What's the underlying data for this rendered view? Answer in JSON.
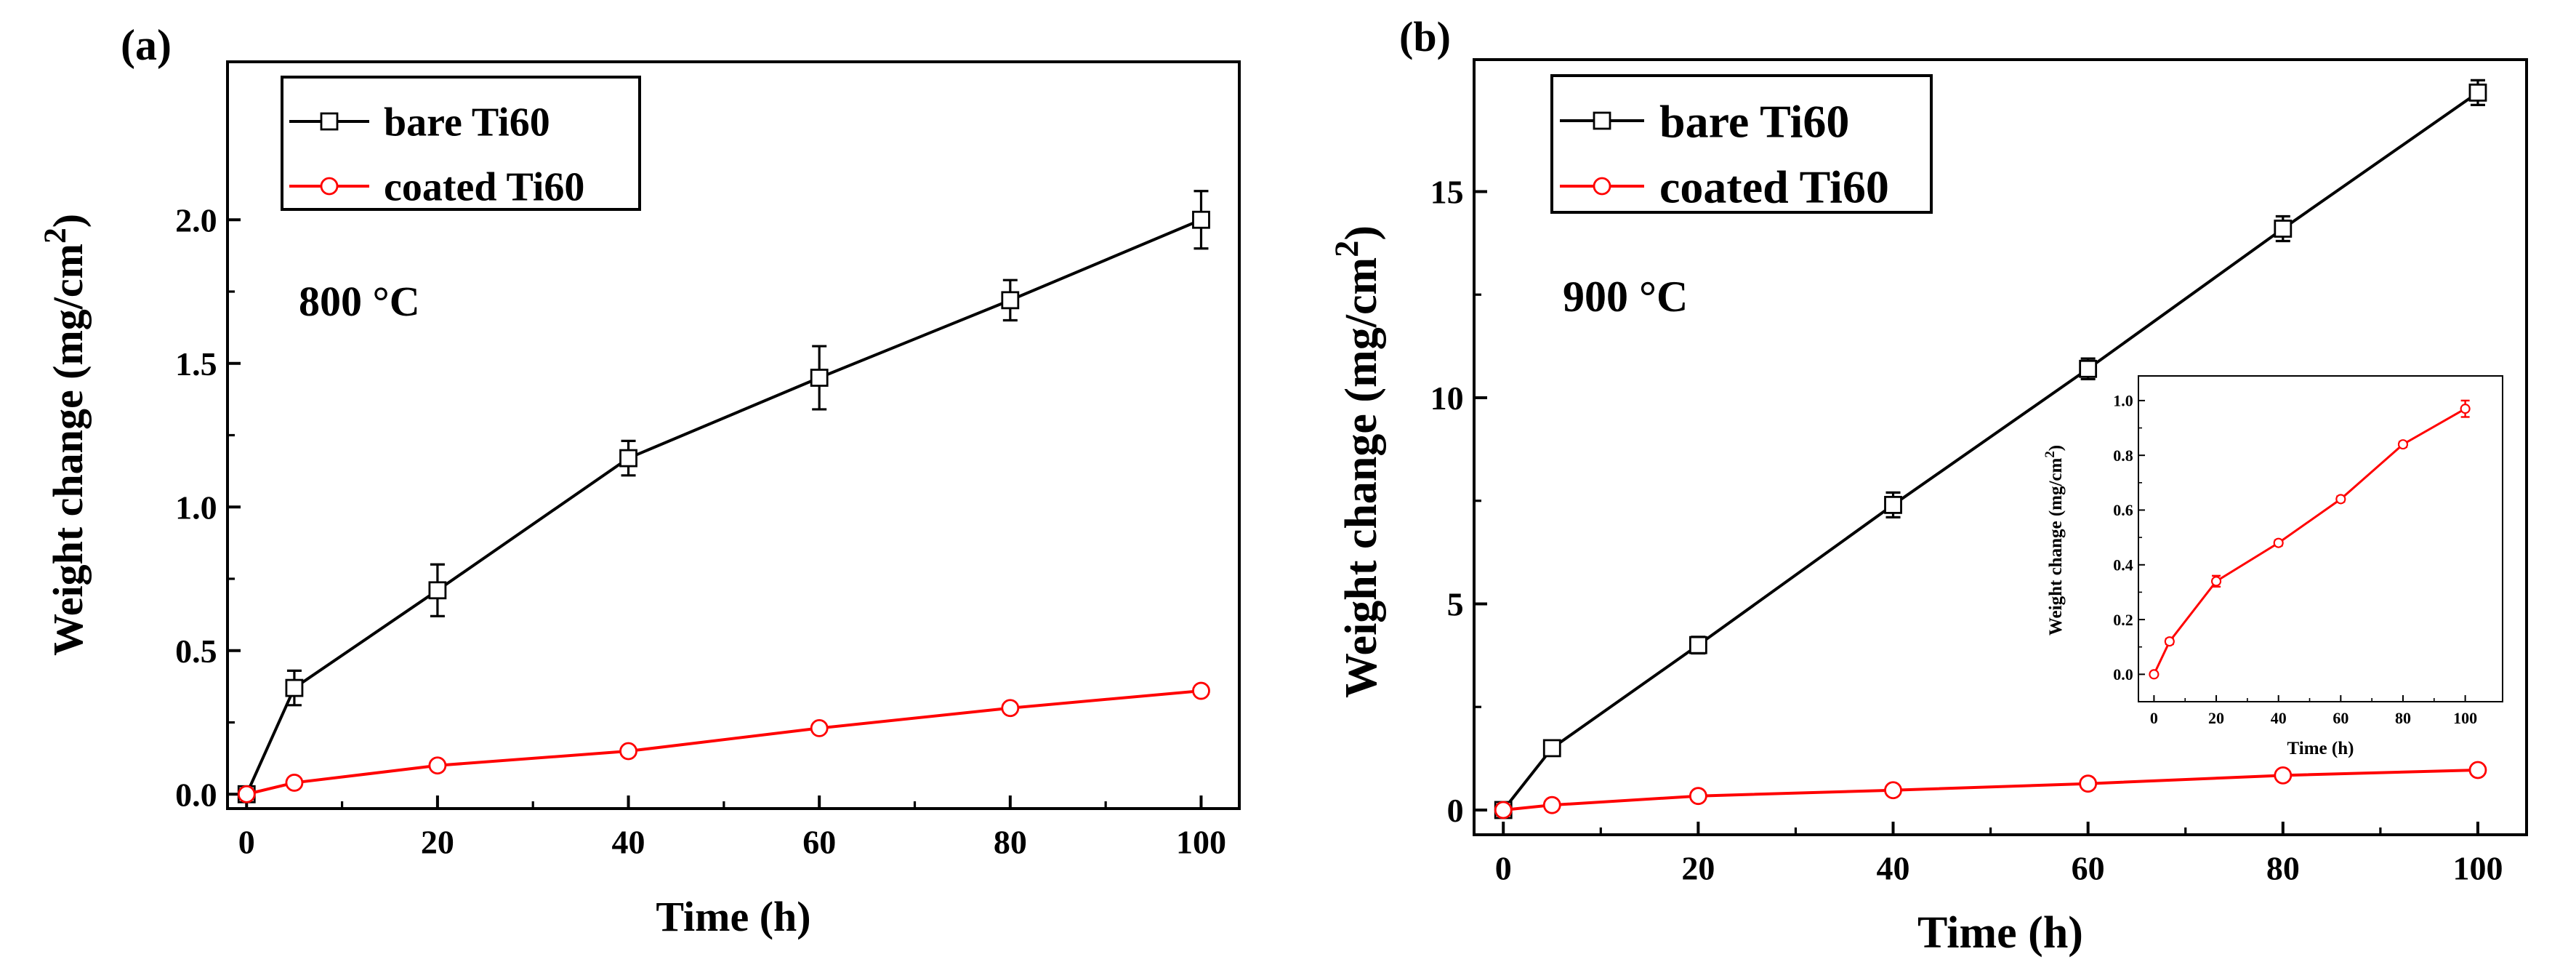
{
  "chart_data": [
    {
      "panel": "(a)",
      "type": "line",
      "xlabel": "Time (h)",
      "ylabel": "Weight change (mg/cm",
      "ylabel_sup": "2",
      "ylabel_close": ")",
      "xlim": [
        -2,
        104
      ],
      "ylim": [
        -0.05,
        2.55
      ],
      "xticks": [
        0,
        20,
        40,
        60,
        80,
        100
      ],
      "yticks": [
        0.0,
        0.5,
        1.0,
        1.5,
        2.0
      ],
      "ytick_labels": [
        "0.0",
        "0.5",
        "1.0",
        "1.5",
        "2.0"
      ],
      "annotation": "800 °C",
      "legend_position": "top-left",
      "series": [
        {
          "name": "bare Ti60",
          "color": "#000000",
          "marker": "square",
          "x": [
            0,
            5,
            20,
            40,
            60,
            80,
            100
          ],
          "values": [
            0.0,
            0.37,
            0.71,
            1.17,
            1.45,
            1.72,
            2.0
          ],
          "errors": [
            0.0,
            0.06,
            0.09,
            0.06,
            0.11,
            0.07,
            0.1
          ]
        },
        {
          "name": "coated Ti60",
          "color": "#ff0000",
          "marker": "circle",
          "x": [
            0,
            5,
            20,
            40,
            60,
            80,
            100
          ],
          "values": [
            0.0,
            0.04,
            0.1,
            0.15,
            0.23,
            0.3,
            0.36
          ],
          "errors": [
            0.0,
            0.005,
            0.005,
            0.005,
            0.005,
            0.005,
            0.005
          ]
        }
      ]
    },
    {
      "panel": "(b)",
      "type": "line",
      "xlabel": "Time (h)",
      "ylabel": "Weight change (mg/cm",
      "ylabel_sup": "2",
      "ylabel_close": ")",
      "xlim": [
        -3,
        105
      ],
      "ylim": [
        -0.6,
        18.2
      ],
      "xticks": [
        0,
        20,
        40,
        60,
        80,
        100
      ],
      "yticks": [
        0,
        5,
        10,
        15
      ],
      "ytick_labels": [
        "0",
        "5",
        "10",
        "15"
      ],
      "annotation": "900 °C",
      "legend_position": "top-left",
      "series": [
        {
          "name": "bare Ti60",
          "color": "#000000",
          "marker": "square",
          "x": [
            0,
            5,
            20,
            40,
            60,
            80,
            100
          ],
          "values": [
            0.0,
            1.5,
            4.0,
            7.4,
            10.7,
            14.1,
            17.4
          ],
          "errors": [
            0.0,
            0.15,
            0.2,
            0.3,
            0.25,
            0.3,
            0.3
          ]
        },
        {
          "name": "coated Ti60",
          "color": "#ff0000",
          "marker": "circle",
          "x": [
            0,
            5,
            20,
            40,
            60,
            80,
            100
          ],
          "values": [
            0.0,
            0.12,
            0.34,
            0.48,
            0.64,
            0.84,
            0.97
          ],
          "errors": [
            0.0,
            0.02,
            0.03,
            0.02,
            0.02,
            0.02,
            0.03
          ]
        }
      ],
      "inset": {
        "type": "line",
        "xlabel": "Time (h)",
        "ylabel": "Weight change (mg/cm",
        "ylabel_sup": "2",
        "ylabel_close": ")",
        "xlim": [
          -5,
          112
        ],
        "ylim": [
          -0.1,
          1.09
        ],
        "xticks": [
          0,
          20,
          40,
          60,
          80,
          100
        ],
        "yticks": [
          0.0,
          0.2,
          0.4,
          0.6,
          0.8,
          1.0
        ],
        "ytick_labels": [
          "0.0",
          "0.2",
          "0.4",
          "0.6",
          "0.8",
          "1.0"
        ],
        "series": [
          {
            "name": "coated Ti60",
            "color": "#ff0000",
            "marker": "circle",
            "x": [
              0,
              5,
              20,
              40,
              60,
              80,
              100
            ],
            "values": [
              0.0,
              0.12,
              0.34,
              0.48,
              0.64,
              0.84,
              0.97
            ],
            "errors": [
              0.0,
              0.01,
              0.02,
              0.01,
              0.01,
              0.01,
              0.03
            ]
          }
        ]
      }
    }
  ]
}
